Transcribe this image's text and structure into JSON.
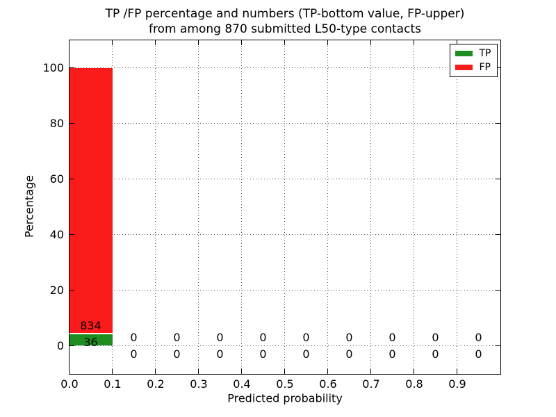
{
  "title": {
    "line1": "TP /FP percentage and numbers (TP-bottom value, FP-upper)",
    "line2": "from among 870 submitted L50-type contacts"
  },
  "legend": {
    "position": "upper right",
    "items": [
      {
        "label": "TP",
        "color": "#1f8c1f"
      },
      {
        "label": "FP",
        "color": "#fb1b1b"
      }
    ]
  },
  "chart_data": {
    "type": "bar",
    "stacked": true,
    "title": "TP /FP percentage and numbers (TP-bottom value, FP-upper) from among 870 submitted L50-type contacts",
    "xlabel": "Predicted probability",
    "ylabel": "Percentage",
    "total_contacts": 870,
    "xlim": [
      0,
      1
    ],
    "ylim": [
      -10,
      110
    ],
    "bin_edges": [
      0.0,
      0.1,
      0.2,
      0.3,
      0.4,
      0.5,
      0.6,
      0.7,
      0.8,
      0.9,
      1.0
    ],
    "bin_centers": [
      0.05,
      0.15,
      0.25,
      0.35,
      0.45,
      0.55,
      0.65,
      0.75,
      0.85,
      0.95
    ],
    "xticks": {
      "values": [
        0.0,
        0.1,
        0.2,
        0.3,
        0.4,
        0.5,
        0.6,
        0.7,
        0.8,
        0.9
      ],
      "labels": [
        "0.0",
        "0.1",
        "0.2",
        "0.3",
        "0.4",
        "0.5",
        "0.6",
        "0.7",
        "0.8",
        "0.9"
      ]
    },
    "yticks": {
      "values": [
        0,
        20,
        40,
        60,
        80,
        100
      ],
      "labels": [
        "0",
        "20",
        "40",
        "60",
        "80",
        "100"
      ]
    },
    "grid": "dotted",
    "series": [
      {
        "name": "TP",
        "color": "#1f8c1f",
        "counts": [
          36,
          0,
          0,
          0,
          0,
          0,
          0,
          0,
          0,
          0
        ],
        "percent": [
          4.14,
          0,
          0,
          0,
          0,
          0,
          0,
          0,
          0,
          0
        ]
      },
      {
        "name": "FP",
        "color": "#fb1b1b",
        "counts": [
          834,
          0,
          0,
          0,
          0,
          0,
          0,
          0,
          0,
          0
        ],
        "percent": [
          95.86,
          0,
          0,
          0,
          0,
          0,
          0,
          0,
          0,
          0
        ]
      }
    ],
    "annotation_offset_pct": 3
  }
}
